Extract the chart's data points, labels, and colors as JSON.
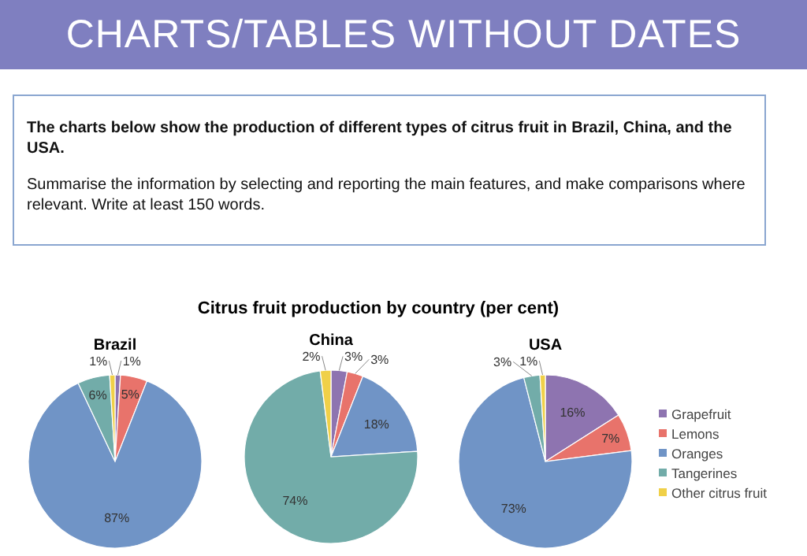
{
  "chart_data": [
    {
      "type": "pie",
      "title": "Brazil",
      "annotations": [
        "CHARTS/TABLES WITHOUT DATES",
        "The charts below show the production of different types of citrus fruit in Brazil, China, and the USA.",
        "Summarise the information by selecting and reporting the main features, and make comparisons where relevant. Write at least 150 words.",
        "Citrus fruit production by country (per cent)"
      ],
      "categories": [
        null,
        null,
        null,
        null,
        null
      ],
      "values": [
        1,
        5,
        87,
        6,
        1
      ],
      "value_labels": [
        "1%",
        "5%",
        "87%",
        "6%",
        "1%"
      ],
      "colors": [
        "#8e74b0",
        "#e8736b",
        "#7094c6",
        "#72aca9",
        "#f0d048"
      ]
    },
    {
      "type": "pie",
      "title": "China",
      "categories": [
        null,
        null,
        null,
        null,
        null
      ],
      "values": [
        3,
        3,
        18,
        74,
        2
      ],
      "value_labels": [
        "3%",
        "3%",
        "18%",
        "74%",
        "2%"
      ],
      "colors": [
        "#8e74b0",
        "#e8736b",
        "#7094c6",
        "#72aca9",
        "#f0d048"
      ]
    },
    {
      "type": "pie",
      "title": "USA",
      "categories": [
        "Grapefruit",
        "Lemons",
        "Oranges",
        "Tangerines",
        "Other citrus fruit"
      ],
      "values": [
        16,
        7,
        73,
        3,
        1
      ],
      "value_labels": [
        "16%",
        "7%",
        "73%",
        "3%",
        "1%"
      ],
      "colors": [
        "#8e74b0",
        "#e8736b",
        "#7094c6",
        "#72aca9",
        "#f0d048"
      ],
      "legend": "right"
    }
  ]
}
